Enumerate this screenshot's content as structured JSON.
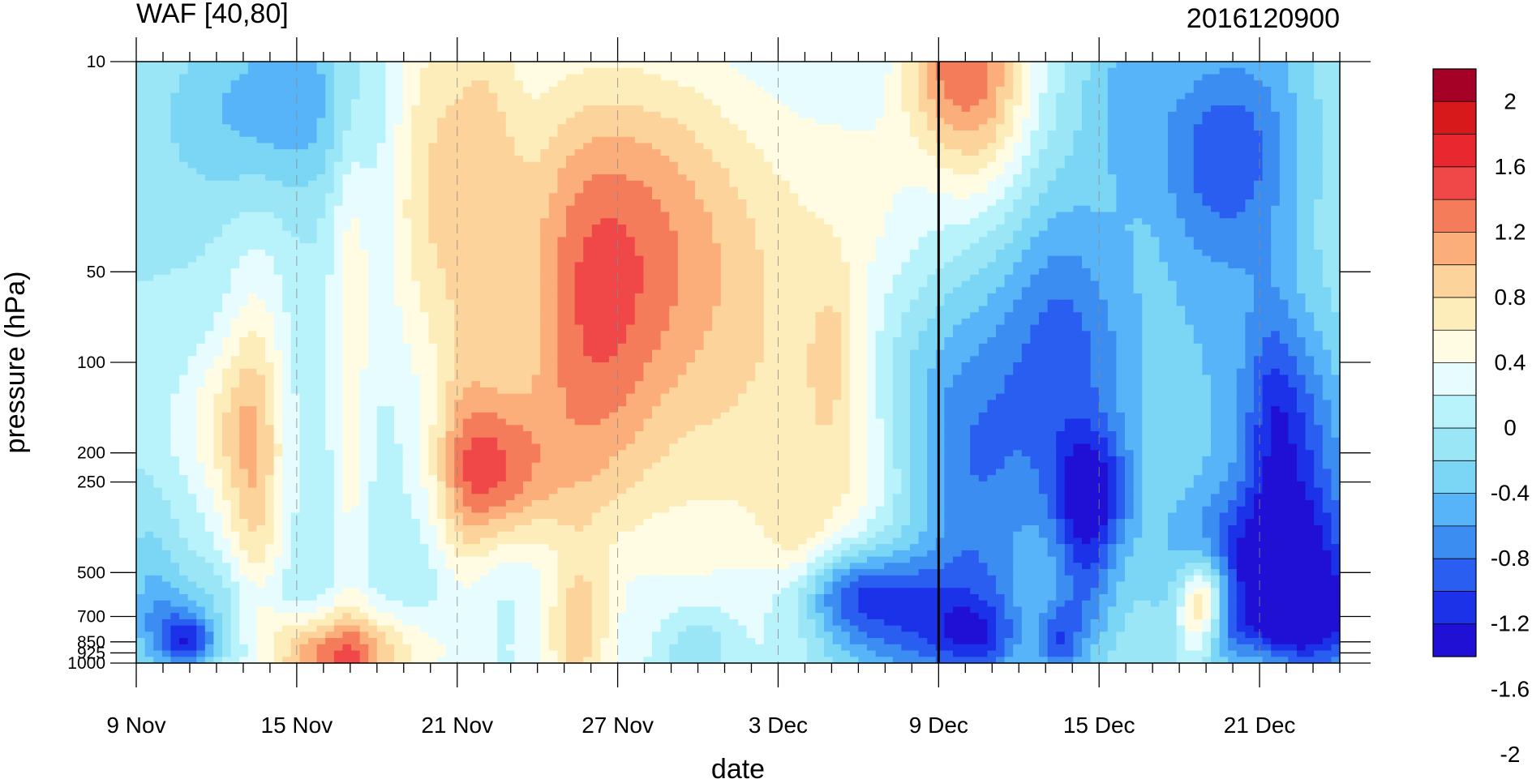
{
  "chart_data": {
    "type": "heatmap",
    "title": "WAF [40,80]",
    "subtitle_right": "2016120900",
    "xlabel": "date",
    "ylabel": "pressure (hPa)",
    "x_tick_labels": [
      "9 Nov",
      "15 Nov",
      "21 Nov",
      "27 Nov",
      "3 Dec",
      "9 Dec",
      "15 Dec",
      "21 Dec"
    ],
    "x_start": "9 Nov",
    "x_end": "24 Dec",
    "x_days": 45,
    "y_scale": "log",
    "y_range": [
      1000,
      10
    ],
    "y_tick_labels": [
      "10",
      "50",
      "100",
      "200",
      "250",
      "500",
      "700",
      "850",
      "925",
      "1000"
    ],
    "vertical_line_at": "9 Dec",
    "colorbar": {
      "tick_labels": [
        "2",
        "1.6",
        "1.2",
        "0.8",
        "0.4",
        "0",
        "-0.4",
        "-0.8",
        "-1.2",
        "-1.6",
        "-2"
      ],
      "colors": [
        "#A50026",
        "#D7191C",
        "#E8282E",
        "#F04848",
        "#F57C5A",
        "#FBAE7A",
        "#FDD39C",
        "#FDEDBB",
        "#FFFCE3",
        "#E6FCFF",
        "#B8F2FA",
        "#9AE6F7",
        "#7BD6F5",
        "#58B4F8",
        "#3C8DF2",
        "#2A5EF0",
        "#1B32E8",
        "#2010D6"
      ],
      "levels": [
        2.2,
        2.0,
        1.8,
        1.6,
        1.4,
        1.2,
        1.0,
        0.8,
        0.6,
        0.4,
        0.2,
        0.0,
        -0.2,
        -0.4,
        -0.6,
        -0.8,
        -1.0,
        -1.2,
        -1.4,
        -1.6,
        -1.8,
        -2.0
      ]
    }
  }
}
